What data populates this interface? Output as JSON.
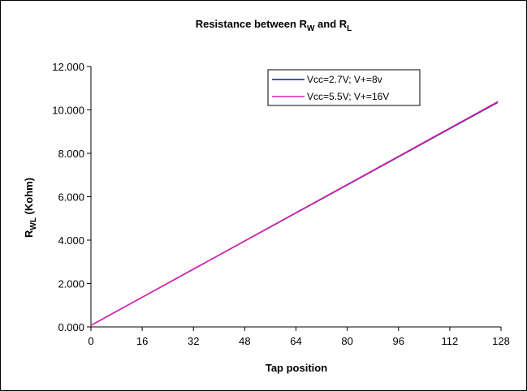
{
  "chart_data": {
    "type": "line",
    "title": "Resistance between R",
    "title_sub1": "W",
    "title_mid": " and R",
    "title_sub2": "L",
    "xlabel": "Tap position",
    "ylabel": "R",
    "ylabel_sub": "WL",
    "ylabel_suffix": " (Kohm)",
    "xlim": [
      0,
      128
    ],
    "ylim": [
      0,
      12
    ],
    "x_ticks": [
      "0",
      "16",
      "32",
      "48",
      "64",
      "80",
      "96",
      "112",
      "128"
    ],
    "y_ticks": [
      "0.000",
      "2.000",
      "4.000",
      "6.000",
      "8.000",
      "10.000",
      "12.000"
    ],
    "grid": false,
    "legend_position": "top-right",
    "series": [
      {
        "name": "Vcc=2.7V; V+=8v",
        "color": "#1a1a7a",
        "x": [
          0,
          127
        ],
        "y": [
          0.07,
          10.35
        ]
      },
      {
        "name": "Vcc=5.5V; V+=16V",
        "color": "#e020b0",
        "x": [
          0,
          127
        ],
        "y": [
          0.07,
          10.38
        ]
      }
    ]
  }
}
